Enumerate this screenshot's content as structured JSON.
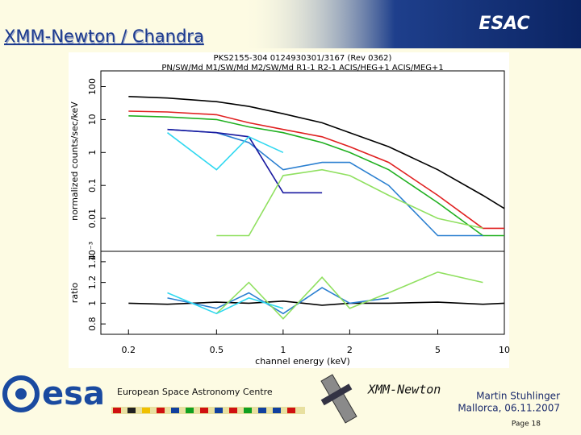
{
  "slide": {
    "title": "XMM-Newton / Chandra",
    "corner": "ESAC",
    "esa": "esa",
    "esa_name": "European Space Astronomy Centre",
    "mission": "XMM-Newton",
    "author": "Martin Stuhlinger",
    "place_date": "Mallorca, 06.11.2007",
    "page": "Page 18"
  },
  "chart_data": [
    {
      "type": "line",
      "title": "PKS2155-304 0124930301/3167 (Rev 0362)",
      "subtitle": "PN/SW/Md M1/SW/Md M2/SW/Md R1-1 R2-1 ACIS/HEG+1 ACIS/MEG+1",
      "ylabel": "normalized counts/sec/keV",
      "log_x": true,
      "log_y": true,
      "xlim": [
        0.15,
        10
      ],
      "ylim": [
        0.001,
        300
      ],
      "yticks": [
        {
          "value": 0.001,
          "label": "10⁻³"
        },
        0.01,
        0.1,
        1,
        10,
        100
      ],
      "x": [
        0.2,
        0.3,
        0.5,
        0.7,
        1,
        1.5,
        2,
        3,
        5,
        8,
        10
      ],
      "series": [
        {
          "color": "#000000",
          "values": [
            50,
            45,
            35,
            25,
            15,
            8,
            4,
            1.5,
            0.3,
            0.05,
            0.02
          ]
        },
        {
          "color": "#e02020",
          "values": [
            18,
            17,
            14,
            8,
            5,
            3,
            1.5,
            0.5,
            0.05,
            0.005,
            0.005
          ]
        },
        {
          "color": "#20b020",
          "values": [
            13,
            12,
            10,
            6,
            4,
            2,
            1,
            0.3,
            0.03,
            0.003,
            0.003
          ]
        },
        {
          "color": "#2a7fd0",
          "values": [
            null,
            5,
            4,
            2,
            0.3,
            0.5,
            0.5,
            0.1,
            0.003,
            0.003,
            null
          ]
        },
        {
          "color": "#1a1aa0",
          "values": [
            null,
            5,
            4,
            3,
            0.06,
            0.06,
            null,
            null,
            null,
            null,
            null
          ]
        },
        {
          "color": "#30d8f0",
          "values": [
            null,
            4,
            0.3,
            3,
            1,
            null,
            null,
            null,
            null,
            null,
            null
          ]
        },
        {
          "color": "#90e060",
          "values": [
            null,
            null,
            0.003,
            0.003,
            0.2,
            0.3,
            0.2,
            0.05,
            0.01,
            0.005,
            null
          ]
        }
      ]
    },
    {
      "type": "line",
      "ylabel": "ratio",
      "xlabel": "channel energy (keV)",
      "log_x": true,
      "xlim": [
        0.15,
        10
      ],
      "ylim": [
        0.7,
        1.5
      ],
      "xticks": [
        0.2,
        0.5,
        1,
        2,
        5,
        10
      ],
      "yticks": [
        0.8,
        1,
        1.2,
        1.4
      ],
      "x": [
        0.2,
        0.3,
        0.5,
        0.7,
        1,
        1.5,
        2,
        3,
        5,
        8,
        10
      ],
      "series": [
        {
          "color": "#000000",
          "values": [
            1.0,
            0.99,
            1.01,
            1.0,
            1.02,
            0.98,
            1.0,
            1.0,
            1.01,
            0.99,
            1.0
          ]
        },
        {
          "color": "#2a7fd0",
          "values": [
            null,
            1.05,
            0.95,
            1.1,
            0.9,
            1.15,
            1.0,
            1.05,
            null,
            null,
            null
          ]
        },
        {
          "color": "#90e060",
          "values": [
            null,
            null,
            0.9,
            1.2,
            0.85,
            1.25,
            0.95,
            1.1,
            1.3,
            1.2,
            null
          ]
        },
        {
          "color": "#30d8f0",
          "values": [
            null,
            1.1,
            0.9,
            1.05,
            0.95,
            null,
            null,
            null,
            null,
            null,
            null
          ]
        }
      ]
    }
  ]
}
